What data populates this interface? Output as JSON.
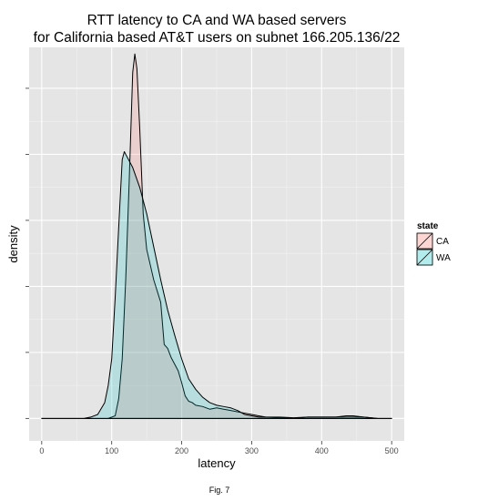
{
  "chart_data": {
    "type": "area",
    "title": "RTT latency to CA and WA based servers",
    "subtitle": "for California based AT&T users on subnet 166.205.136/22",
    "xlabel": "latency",
    "ylabel": "density",
    "xlim": [
      -18,
      518
    ],
    "ylim": [
      -0.0017,
      0.0281
    ],
    "x_ticks": [
      0,
      100,
      200,
      300,
      400,
      500
    ],
    "y_ticks": [
      0,
      0.005,
      0.01,
      0.015,
      0.02,
      0.025
    ],
    "y_tick_labels_visible": false,
    "grid": true,
    "legend": {
      "title": "state",
      "placement": "right"
    },
    "series": [
      {
        "name": "CA",
        "fill": "#F8766D",
        "points": [
          [
            0,
            0
          ],
          [
            50,
            0
          ],
          [
            95,
            0
          ],
          [
            105,
            0.0002
          ],
          [
            110,
            0.0015
          ],
          [
            115,
            0.0045
          ],
          [
            120,
            0.0105
          ],
          [
            125,
            0.018
          ],
          [
            130,
            0.0262
          ],
          [
            133,
            0.0276
          ],
          [
            136,
            0.0265
          ],
          [
            140,
            0.022
          ],
          [
            145,
            0.0155
          ],
          [
            150,
            0.0128
          ],
          [
            160,
            0.0105
          ],
          [
            170,
            0.0088
          ],
          [
            175,
            0.0056
          ],
          [
            180,
            0.0053
          ],
          [
            185,
            0.0046
          ],
          [
            190,
            0.0041
          ],
          [
            195,
            0.0036
          ],
          [
            200,
            0.0027
          ],
          [
            205,
            0.0017
          ],
          [
            210,
            0.0013
          ],
          [
            215,
            0.0012
          ],
          [
            220,
            0.001
          ],
          [
            230,
            0.0009
          ],
          [
            240,
            0.0007
          ],
          [
            250,
            0.0008
          ],
          [
            260,
            0.0007
          ],
          [
            270,
            0.0006
          ],
          [
            280,
            0.0005
          ],
          [
            290,
            0.0004
          ],
          [
            300,
            0.0003
          ],
          [
            310,
            0.0002
          ],
          [
            320,
            0.0001
          ],
          [
            340,
            5e-05
          ],
          [
            360,
            0
          ],
          [
            380,
            0.0001
          ],
          [
            400,
            0.0001
          ],
          [
            420,
            0.0001
          ],
          [
            440,
            0.0001
          ],
          [
            460,
            0.0001
          ],
          [
            480,
            0
          ],
          [
            500,
            0
          ]
        ]
      },
      {
        "name": "WA",
        "fill": "#00BFC4",
        "points": [
          [
            0,
            0
          ],
          [
            50,
            0
          ],
          [
            60,
            0
          ],
          [
            70,
            0.0001
          ],
          [
            80,
            0.0003
          ],
          [
            90,
            0.0012
          ],
          [
            95,
            0.0025
          ],
          [
            100,
            0.0045
          ],
          [
            105,
            0.0092
          ],
          [
            110,
            0.0145
          ],
          [
            115,
            0.0196
          ],
          [
            118,
            0.0202
          ],
          [
            122,
            0.0198
          ],
          [
            130,
            0.019
          ],
          [
            140,
            0.0175
          ],
          [
            150,
            0.0155
          ],
          [
            160,
            0.013
          ],
          [
            170,
            0.0105
          ],
          [
            180,
            0.0082
          ],
          [
            190,
            0.0063
          ],
          [
            200,
            0.0045
          ],
          [
            210,
            0.003
          ],
          [
            220,
            0.0022
          ],
          [
            230,
            0.0016
          ],
          [
            240,
            0.0012
          ],
          [
            250,
            0.001
          ],
          [
            260,
            0.0009
          ],
          [
            270,
            0.0008
          ],
          [
            280,
            0.0006
          ],
          [
            290,
            0.0003
          ],
          [
            300,
            0.0002
          ],
          [
            310,
            0.0001
          ],
          [
            320,
            0.0001
          ],
          [
            340,
            0.0001
          ],
          [
            360,
            5e-05
          ],
          [
            380,
            0.0001
          ],
          [
            400,
            0.0001
          ],
          [
            420,
            0.0001
          ],
          [
            435,
            0.0002
          ],
          [
            445,
            0.0002
          ],
          [
            460,
            0.0001
          ],
          [
            480,
            0
          ],
          [
            500,
            0
          ]
        ]
      }
    ]
  },
  "caption": "Fig. 7"
}
